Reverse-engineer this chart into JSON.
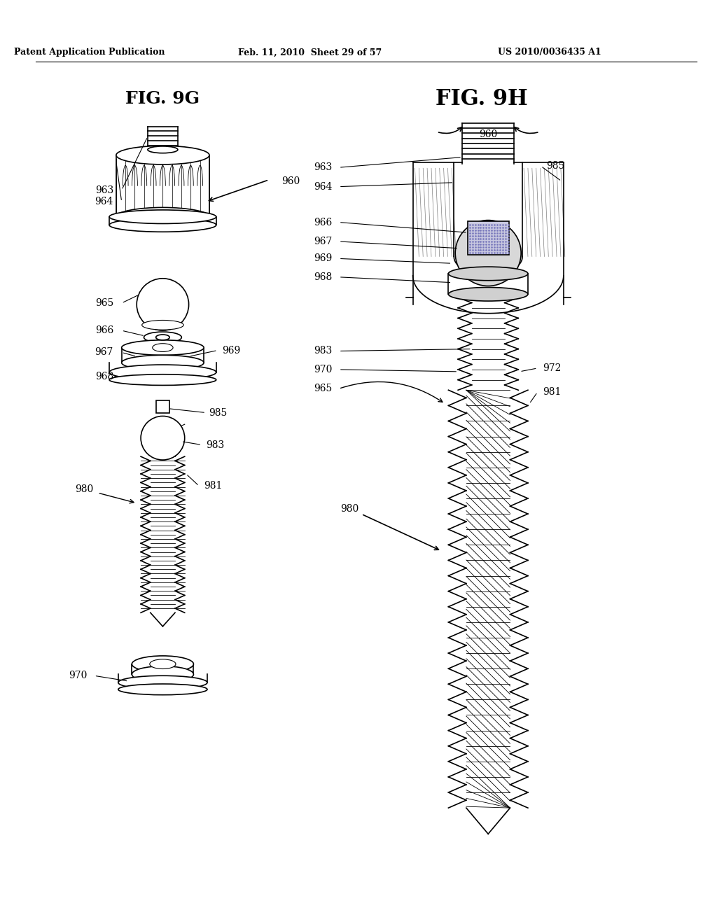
{
  "fig_title_left": "FIG. 9G",
  "fig_title_right": "FIG. 9H",
  "header_left": "Patent Application Publication",
  "header_center": "Feb. 11, 2010  Sheet 29 of 57",
  "header_right": "US 2010/0036435 A1",
  "bg_color": "#ffffff",
  "line_color": "#000000"
}
